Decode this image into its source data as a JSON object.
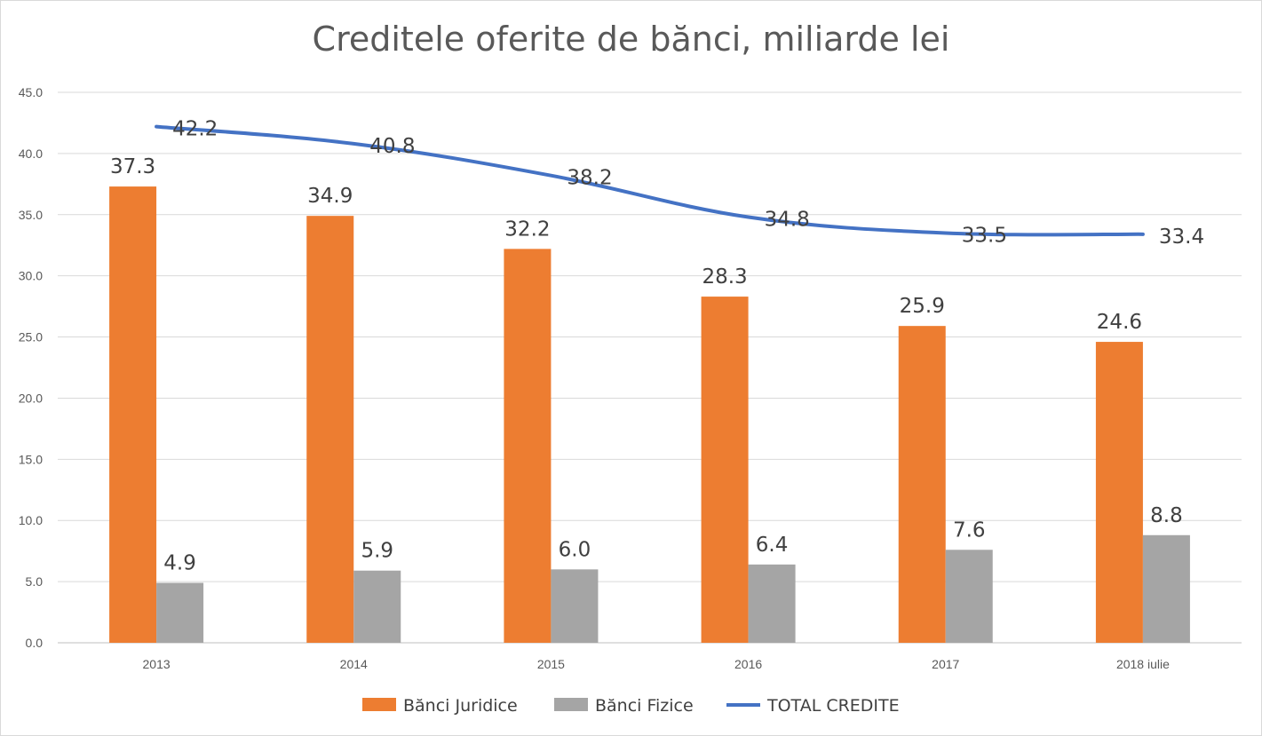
{
  "chart_data": {
    "type": "bar",
    "title": "Creditele oferite de bănci, miliarde lei",
    "categories": [
      "2013",
      "2014",
      "2015",
      "2016",
      "2017",
      "2018 iulie"
    ],
    "ylim": [
      0,
      45
    ],
    "yticks": [
      "0.0",
      "5.0",
      "10.0",
      "15.0",
      "20.0",
      "25.0",
      "30.0",
      "35.0",
      "40.0",
      "45.0"
    ],
    "grid": true,
    "legend_position": "bottom",
    "series": [
      {
        "name": "Bănci Juridice",
        "type": "bar",
        "color": "#ed7d31",
        "values": [
          37.3,
          34.9,
          32.2,
          28.3,
          25.9,
          24.6
        ],
        "labels": [
          "37.3",
          "34.9",
          "32.2",
          "28.3",
          "25.9",
          "24.6"
        ]
      },
      {
        "name": "Bănci Fizice",
        "type": "bar",
        "color": "#a5a5a5",
        "values": [
          4.9,
          5.9,
          6.0,
          6.4,
          7.6,
          8.8
        ],
        "labels": [
          "4.9",
          "5.9",
          "6.0",
          "6.4",
          "7.6",
          "8.8"
        ]
      },
      {
        "name": "TOTAL CREDITE",
        "type": "line",
        "color": "#4472c4",
        "values": [
          42.2,
          40.8,
          38.2,
          34.8,
          33.5,
          33.4
        ],
        "labels": [
          "42.2",
          "40.8",
          "38.2",
          "34.8",
          "33.5",
          "33.4"
        ]
      }
    ]
  }
}
